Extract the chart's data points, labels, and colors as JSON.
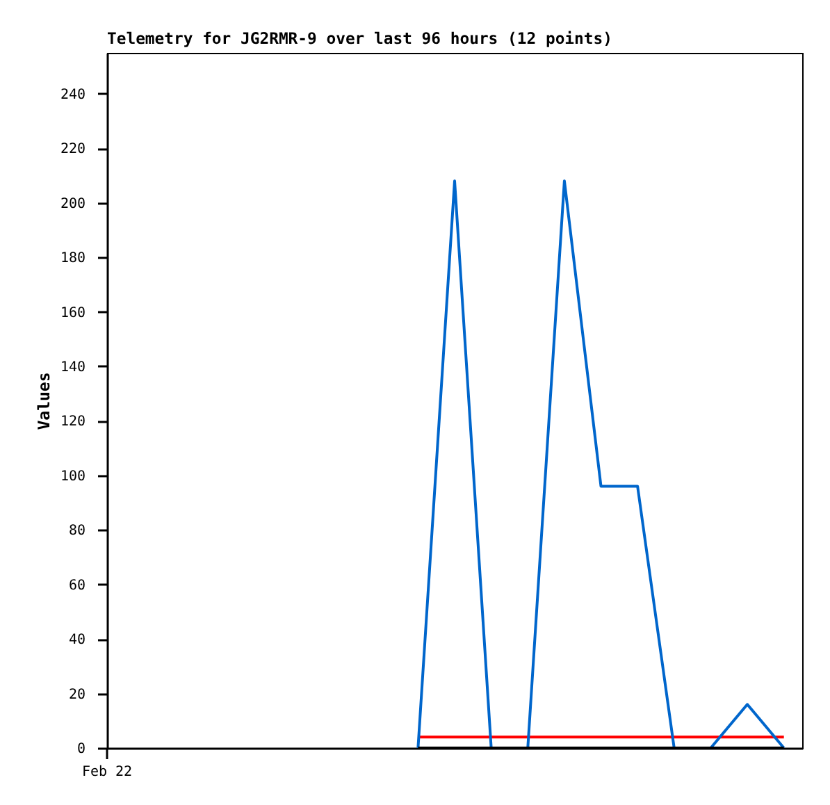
{
  "chart_data": {
    "type": "line",
    "title": "Telemetry for JG2RMR-9 over last 96 hours (12 points)",
    "ylabel": "Values",
    "annotations": [
      "Feb 22"
    ],
    "categories": [
      null,
      null,
      null,
      null,
      null,
      null,
      null,
      null,
      null,
      null,
      null,
      null,
      null,
      null,
      null,
      null,
      null,
      null,
      null
    ],
    "ylim": [
      0,
      255
    ],
    "yticks": [
      0,
      20,
      40,
      60,
      80,
      100,
      120,
      140,
      160,
      180,
      200,
      220,
      240
    ],
    "series": [
      {
        "color": "#ff0000",
        "values": [
          null,
          null,
          null,
          null,
          null,
          null,
          null,
          null,
          4,
          4,
          4,
          4,
          4,
          4,
          4,
          4,
          4,
          4,
          4
        ]
      },
      {
        "color": "#0066cc",
        "values": [
          null,
          null,
          null,
          null,
          null,
          null,
          null,
          null,
          0,
          208,
          0,
          0,
          208,
          96,
          96,
          0,
          0,
          16,
          0
        ]
      },
      {
        "color": "#000000",
        "values": [
          null,
          null,
          null,
          null,
          null,
          null,
          null,
          null,
          0,
          0,
          0,
          0,
          0,
          0,
          0,
          0,
          0,
          0,
          0
        ]
      }
    ]
  }
}
